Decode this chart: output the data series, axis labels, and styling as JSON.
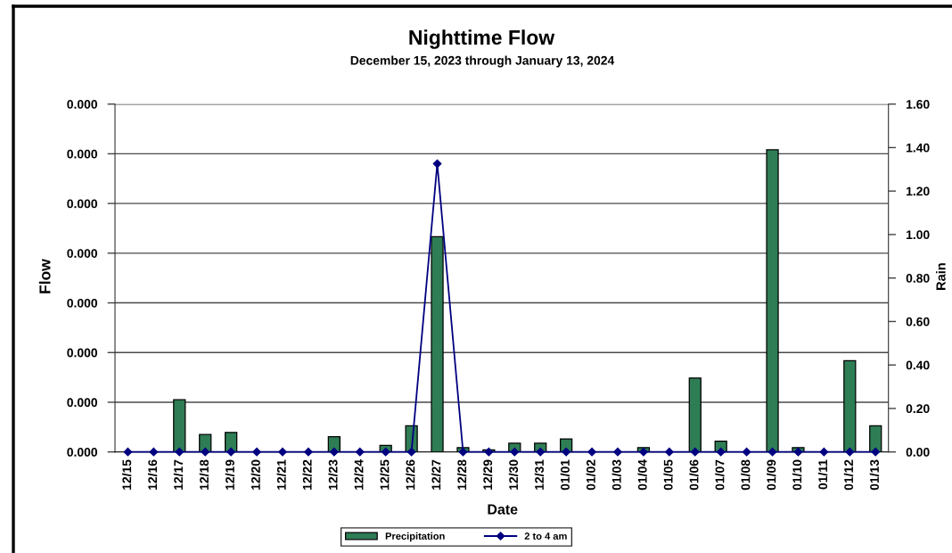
{
  "chart_data": {
    "type": "bar",
    "title": "Nighttime Flow",
    "subtitle": "December 15, 2023 through January 13, 2024",
    "xlabel": "Date",
    "ylabel": "Flow",
    "y2label": "Rain",
    "categories": [
      "12/15",
      "12/16",
      "12/17",
      "12/18",
      "12/19",
      "12/20",
      "12/21",
      "12/22",
      "12/23",
      "12/24",
      "12/25",
      "12/26",
      "12/27",
      "12/28",
      "12/29",
      "12/30",
      "12/31",
      "01/01",
      "01/02",
      "01/03",
      "01/04",
      "01/05",
      "01/06",
      "01/07",
      "01/08",
      "01/09",
      "01/10",
      "01/11",
      "01/12",
      "01/13"
    ],
    "series": [
      {
        "name": "Precipitation",
        "axis": "y2",
        "color": "#2e7d55",
        "values": [
          null,
          null,
          0.24,
          0.08,
          0.09,
          null,
          null,
          null,
          0.07,
          null,
          0.03,
          0.12,
          0.99,
          0.02,
          0.01,
          0.04,
          0.04,
          0.06,
          null,
          null,
          0.02,
          null,
          0.34,
          0.05,
          null,
          1.39,
          0.02,
          null,
          0.42,
          0.12
        ]
      },
      {
        "name": "2 to 4 am",
        "type": "line",
        "axis": "y",
        "color": "#000080",
        "values": [
          0,
          0,
          0,
          0,
          0,
          0,
          0,
          0,
          0,
          0,
          0,
          0,
          0.00029,
          0,
          0,
          0,
          0,
          0,
          0,
          0,
          0,
          0,
          0,
          0,
          0,
          0,
          0,
          0,
          0,
          0
        ]
      }
    ],
    "ylim": [
      0,
      0.00035
    ],
    "yticks": [
      {
        "value": 0,
        "label": "0.000"
      },
      {
        "value": 5e-05,
        "label": "0.000"
      },
      {
        "value": 0.0001,
        "label": "0.000"
      },
      {
        "value": 0.00015,
        "label": "0.000"
      },
      {
        "value": 0.0002,
        "label": "0.000"
      },
      {
        "value": 0.00025,
        "label": "0.000"
      },
      {
        "value": 0.0003,
        "label": "0.000"
      },
      {
        "value": 0.00035,
        "label": "0.000"
      }
    ],
    "y2lim": [
      0,
      1.6
    ],
    "y2ticks": [
      {
        "value": 0,
        "label": "0.00"
      },
      {
        "value": 0.2,
        "label": "0.20"
      },
      {
        "value": 0.4,
        "label": "0.40"
      },
      {
        "value": 0.6,
        "label": "0.60"
      },
      {
        "value": 0.8,
        "label": "0.80"
      },
      {
        "value": 1.0,
        "label": "1.00"
      },
      {
        "value": 1.2,
        "label": "1.20"
      },
      {
        "value": 1.4,
        "label": "1.40"
      },
      {
        "value": 1.6,
        "label": "1.60"
      }
    ],
    "grid": "y",
    "legend": "bottom",
    "marker": "diamond",
    "line_style": "solid"
  }
}
